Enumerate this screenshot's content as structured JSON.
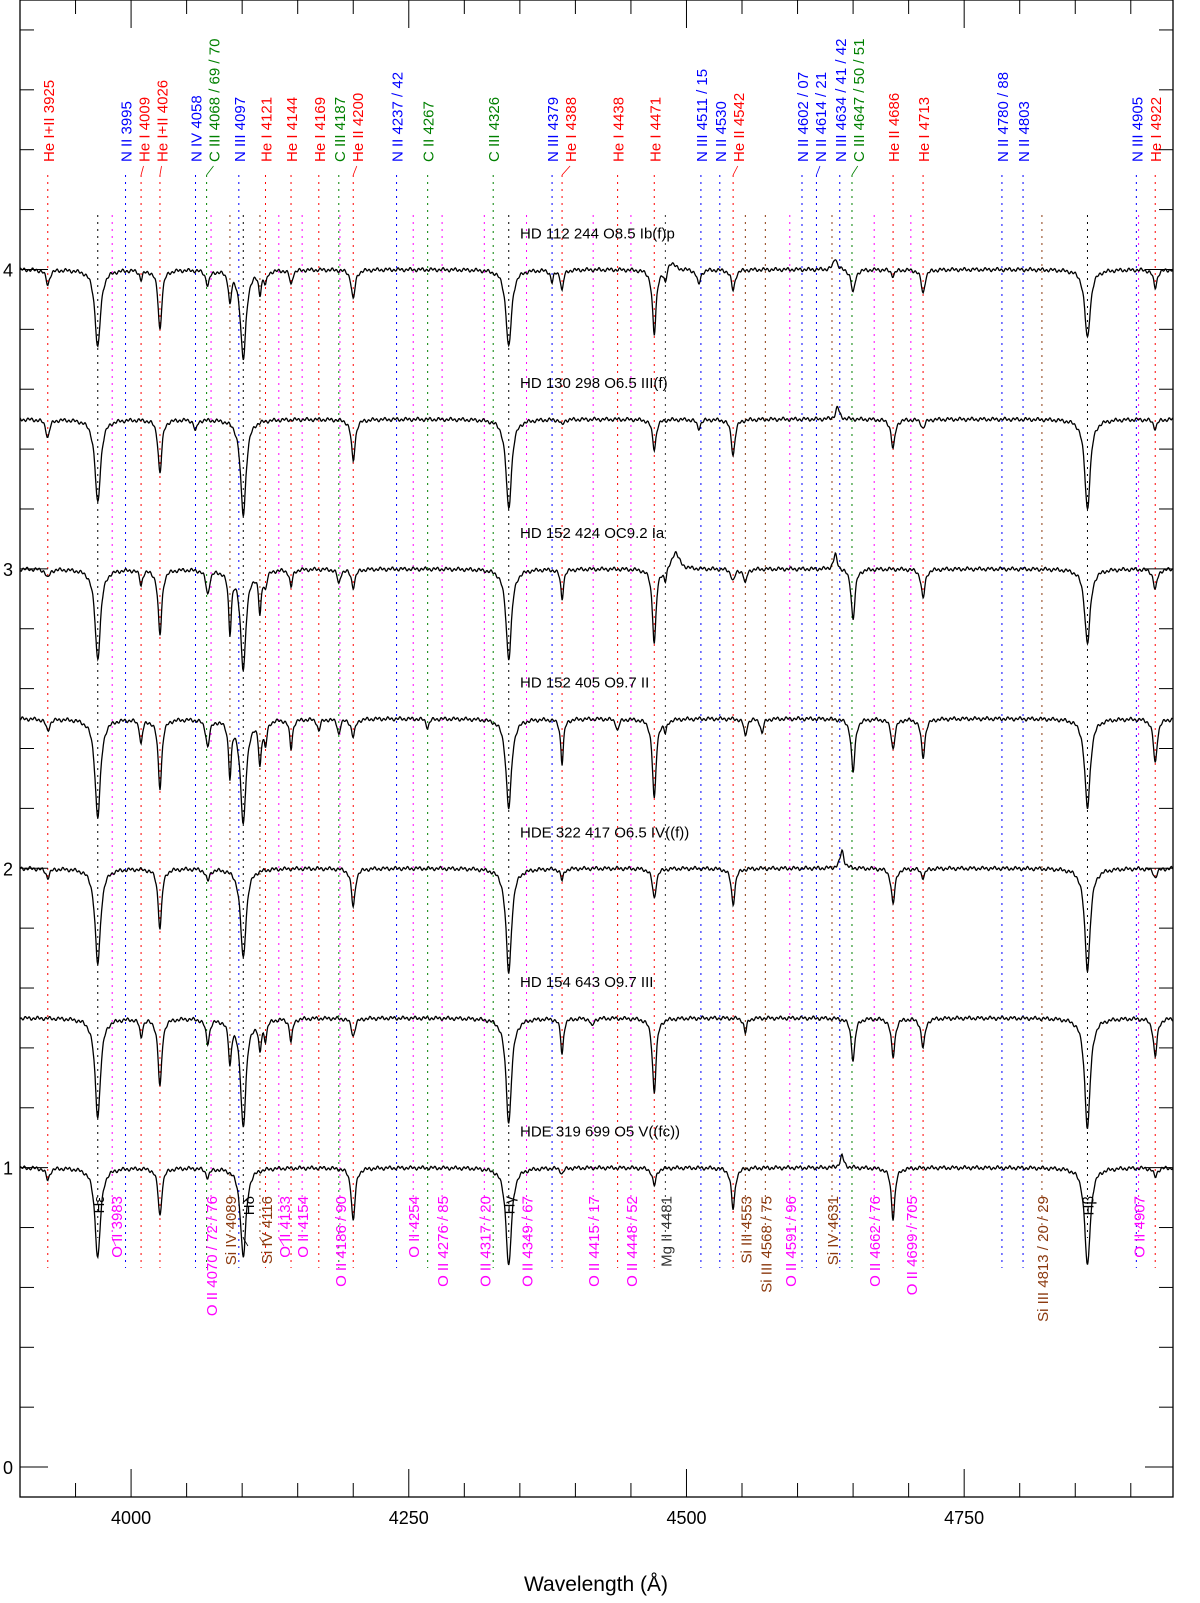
{
  "chart_data": {
    "type": "line",
    "title": "",
    "xlabel": "Wavelength (Å)",
    "ylabel": "",
    "xlim": [
      3900,
      4938
    ],
    "ylim": [
      -0.1,
      4.9
    ],
    "x_ticks": [
      4000,
      4250,
      4500,
      4750
    ],
    "x_tick_labels": [
      "4000",
      "4250",
      "4500",
      "4750"
    ],
    "y_ticks": [
      0,
      1,
      2,
      3,
      4
    ],
    "y_tick_labels": [
      "0",
      "1",
      "2",
      "3",
      "4"
    ],
    "grid": false,
    "colors": {
      "He": "#ff0000",
      "N": "#0000ff",
      "C": "#008000",
      "O": "#ff00ff",
      "Si": "#8b3a0f",
      "H": "#000000",
      "Mg": "#333333",
      "spectrum": "#000000"
    },
    "top_lines": [
      {
        "text": "He I+II 3925",
        "wl": 3925,
        "color": "#ff0000"
      },
      {
        "text": "N II 3995",
        "wl": 3995,
        "color": "#0000ff"
      },
      {
        "text": "He I 4009",
        "wl": 4009,
        "color": "#ff0000"
      },
      {
        "text": "He I+II 4026",
        "wl": 4026,
        "color": "#ff0000"
      },
      {
        "text": "N IV 4058",
        "wl": 4058,
        "color": "#0000ff"
      },
      {
        "text": "C III 4068 / 69 / 70",
        "wl": 4068,
        "color": "#008000"
      },
      {
        "text": "N III 4097",
        "wl": 4097,
        "color": "#0000ff"
      },
      {
        "text": "He I 4121",
        "wl": 4121,
        "color": "#ff0000"
      },
      {
        "text": "He I 4144",
        "wl": 4144,
        "color": "#ff0000"
      },
      {
        "text": "He I 4169",
        "wl": 4169,
        "color": "#ff0000"
      },
      {
        "text": "C III 4187",
        "wl": 4187,
        "color": "#008000"
      },
      {
        "text": "He II 4200",
        "wl": 4200,
        "color": "#ff0000"
      },
      {
        "text": "N II 4237 / 42",
        "wl": 4239,
        "color": "#0000ff"
      },
      {
        "text": "C II 4267",
        "wl": 4267,
        "color": "#008000"
      },
      {
        "text": "C III 4326",
        "wl": 4326,
        "color": "#008000"
      },
      {
        "text": "N III 4379",
        "wl": 4379,
        "color": "#0000ff"
      },
      {
        "text": "He I 4388",
        "wl": 4388,
        "color": "#ff0000"
      },
      {
        "text": "He I 4438",
        "wl": 4438,
        "color": "#ff0000"
      },
      {
        "text": "He I 4471",
        "wl": 4471,
        "color": "#ff0000"
      },
      {
        "text": "N III 4511 / 15",
        "wl": 4513,
        "color": "#0000ff"
      },
      {
        "text": "N II 4530",
        "wl": 4530,
        "color": "#0000ff"
      },
      {
        "text": "He II 4542",
        "wl": 4542,
        "color": "#ff0000"
      },
      {
        "text": "N II 4602 / 07",
        "wl": 4604,
        "color": "#0000ff"
      },
      {
        "text": "N II 4614 / 21",
        "wl": 4617,
        "color": "#0000ff"
      },
      {
        "text": "N III 4634 / 41 / 42",
        "wl": 4638,
        "color": "#0000ff"
      },
      {
        "text": "C III 4647 / 50 / 51",
        "wl": 4649,
        "color": "#008000"
      },
      {
        "text": "He II 4686",
        "wl": 4686,
        "color": "#ff0000"
      },
      {
        "text": "He I 4713",
        "wl": 4713,
        "color": "#ff0000"
      },
      {
        "text": "N II 4780 / 88",
        "wl": 4784,
        "color": "#0000ff"
      },
      {
        "text": "N II 4803",
        "wl": 4803,
        "color": "#0000ff"
      },
      {
        "text": "N III 4905",
        "wl": 4905,
        "color": "#0000ff"
      },
      {
        "text": "He I 4922",
        "wl": 4922,
        "color": "#ff0000"
      }
    ],
    "bottom_lines": [
      {
        "text": "Hε",
        "wl": 3970,
        "color": "#000000"
      },
      {
        "text": "O II 3983",
        "wl": 3983,
        "color": "#ff00ff"
      },
      {
        "text": "O II 4070 / 72 / 76",
        "wl": 4072,
        "color": "#ff00ff"
      },
      {
        "text": "Si IV 4089",
        "wl": 4089,
        "color": "#8b3a0f"
      },
      {
        "text": "Hδ",
        "wl": 4101,
        "color": "#000000"
      },
      {
        "text": "Si IV 4116",
        "wl": 4116,
        "color": "#8b3a0f"
      },
      {
        "text": "O II 4133",
        "wl": 4133,
        "color": "#ff00ff"
      },
      {
        "text": "O II 4154",
        "wl": 4154,
        "color": "#ff00ff"
      },
      {
        "text": "O II 4186 / 90",
        "wl": 4188,
        "color": "#ff00ff"
      },
      {
        "text": "O II 4254",
        "wl": 4254,
        "color": "#ff00ff"
      },
      {
        "text": "O II 4276 / 85",
        "wl": 4280,
        "color": "#ff00ff"
      },
      {
        "text": "O II 4317 / 20",
        "wl": 4318,
        "color": "#ff00ff"
      },
      {
        "text": "Hγ",
        "wl": 4340,
        "color": "#000000"
      },
      {
        "text": "O II 4349 / 67",
        "wl": 4356,
        "color": "#ff00ff"
      },
      {
        "text": "O II 4415 / 17",
        "wl": 4416,
        "color": "#ff00ff"
      },
      {
        "text": "O II 4448 / 52",
        "wl": 4450,
        "color": "#ff00ff"
      },
      {
        "text": "Mg II 4481",
        "wl": 4481,
        "color": "#333333"
      },
      {
        "text": "Si III 4553",
        "wl": 4553,
        "color": "#8b3a0f"
      },
      {
        "text": "Si III 4568 / 75",
        "wl": 4571,
        "color": "#8b3a0f"
      },
      {
        "text": "O II 4591 / 96",
        "wl": 4593,
        "color": "#ff00ff"
      },
      {
        "text": "Si IV 4631",
        "wl": 4631,
        "color": "#8b3a0f"
      },
      {
        "text": "O II 4662 / 76",
        "wl": 4669,
        "color": "#ff00ff"
      },
      {
        "text": "O II 4699 / 705",
        "wl": 4702,
        "color": "#ff00ff"
      },
      {
        "text": "Si III 4813 / 20 / 29",
        "wl": 4820,
        "color": "#8b3a0f"
      },
      {
        "text": "Hβ",
        "wl": 4861,
        "color": "#000000"
      },
      {
        "text": "O II 4907",
        "wl": 4907,
        "color": "#ff00ff"
      }
    ],
    "series": [
      {
        "name": "HD 112 244",
        "sptype": "O8.5 Ib(f)p",
        "offset": 4,
        "lines": [
          [
            3925,
            0.05,
            2
          ],
          [
            3970,
            0.26,
            3
          ],
          [
            4009,
            0.03,
            1.5
          ],
          [
            4026,
            0.2,
            2
          ],
          [
            4069,
            0.05,
            2
          ],
          [
            4089,
            0.1,
            1.5
          ],
          [
            4101,
            0.3,
            3
          ],
          [
            4116,
            0.07,
            1.5
          ],
          [
            4121,
            0.04,
            1.5
          ],
          [
            4144,
            0.05,
            1.5
          ],
          [
            4200,
            0.1,
            2
          ],
          [
            4340,
            0.26,
            3
          ],
          [
            4379,
            0.04,
            1.5
          ],
          [
            4388,
            0.07,
            1.5
          ],
          [
            4471,
            0.22,
            2
          ],
          [
            4481,
            0.05,
            1.5
          ],
          [
            4486,
            -0.03,
            4
          ],
          [
            4511,
            0.05,
            2
          ],
          [
            4542,
            0.07,
            2
          ],
          [
            4634,
            -0.04,
            2
          ],
          [
            4650,
            0.08,
            2
          ],
          [
            4686,
            0.02,
            2
          ],
          [
            4713,
            0.08,
            2
          ],
          [
            4861,
            0.23,
            3
          ],
          [
            4922,
            0.06,
            2
          ]
        ]
      },
      {
        "name": "HD 130 298",
        "sptype": "O6.5 III(f)",
        "offset": 3.5,
        "lines": [
          [
            3925,
            0.06,
            2
          ],
          [
            3970,
            0.28,
            3
          ],
          [
            4026,
            0.18,
            2
          ],
          [
            4058,
            0.04,
            1.5
          ],
          [
            4101,
            0.32,
            3
          ],
          [
            4200,
            0.14,
            2
          ],
          [
            4340,
            0.3,
            3
          ],
          [
            4388,
            0.02,
            1.5
          ],
          [
            4471,
            0.1,
            2
          ],
          [
            4511,
            0.03,
            2
          ],
          [
            4542,
            0.12,
            2
          ],
          [
            4636,
            -0.04,
            2
          ],
          [
            4686,
            0.1,
            2
          ],
          [
            4713,
            0.03,
            2
          ],
          [
            4861,
            0.3,
            3
          ],
          [
            4922,
            0.03,
            2
          ]
        ]
      },
      {
        "name": "HD 152 424",
        "sptype": "OC9.2 Ia",
        "offset": 3,
        "lines": [
          [
            3925,
            0.03,
            2
          ],
          [
            3970,
            0.3,
            3
          ],
          [
            4009,
            0.05,
            1.5
          ],
          [
            4026,
            0.22,
            2
          ],
          [
            4069,
            0.08,
            2
          ],
          [
            4089,
            0.2,
            1.5
          ],
          [
            4101,
            0.33,
            3
          ],
          [
            4116,
            0.14,
            1.5
          ],
          [
            4121,
            0.05,
            1.5
          ],
          [
            4144,
            0.06,
            1.5
          ],
          [
            4187,
            0.05,
            1.5
          ],
          [
            4200,
            0.06,
            2
          ],
          [
            4340,
            0.3,
            3
          ],
          [
            4388,
            0.1,
            1.5
          ],
          [
            4471,
            0.25,
            2
          ],
          [
            4481,
            0.04,
            1.5
          ],
          [
            4490,
            -0.06,
            4
          ],
          [
            4542,
            0.04,
            2
          ],
          [
            4553,
            0.05,
            1.5
          ],
          [
            4634,
            -0.05,
            2
          ],
          [
            4650,
            0.17,
            2
          ],
          [
            4713,
            0.1,
            2
          ],
          [
            4861,
            0.25,
            3
          ],
          [
            4922,
            0.07,
            2
          ]
        ]
      },
      {
        "name": "HD 152 405",
        "sptype": "O9.7 II",
        "offset": 2.5,
        "lines": [
          [
            3925,
            0.04,
            2
          ],
          [
            3970,
            0.33,
            3
          ],
          [
            4009,
            0.08,
            1.5
          ],
          [
            4026,
            0.23,
            2
          ],
          [
            4069,
            0.09,
            2
          ],
          [
            4089,
            0.18,
            1.5
          ],
          [
            4101,
            0.35,
            3
          ],
          [
            4116,
            0.14,
            1.5
          ],
          [
            4121,
            0.08,
            1.5
          ],
          [
            4144,
            0.1,
            1.5
          ],
          [
            4169,
            0.04,
            1.5
          ],
          [
            4187,
            0.05,
            1.5
          ],
          [
            4200,
            0.06,
            2
          ],
          [
            4267,
            0.03,
            1.5
          ],
          [
            4340,
            0.3,
            3
          ],
          [
            4388,
            0.15,
            1.5
          ],
          [
            4438,
            0.04,
            1.5
          ],
          [
            4471,
            0.27,
            2
          ],
          [
            4481,
            0.04,
            1.5
          ],
          [
            4553,
            0.06,
            1.5
          ],
          [
            4568,
            0.05,
            1.5
          ],
          [
            4650,
            0.18,
            2
          ],
          [
            4686,
            0.1,
            2
          ],
          [
            4713,
            0.13,
            2
          ],
          [
            4861,
            0.3,
            3
          ],
          [
            4922,
            0.15,
            2
          ]
        ]
      },
      {
        "name": "HDE 322 417",
        "sptype": "O6.5 IV((f))",
        "offset": 2,
        "lines": [
          [
            3925,
            0.03,
            2
          ],
          [
            3970,
            0.32,
            3
          ],
          [
            4026,
            0.2,
            2
          ],
          [
            4069,
            0.04,
            2
          ],
          [
            4101,
            0.3,
            3
          ],
          [
            4200,
            0.13,
            2
          ],
          [
            4340,
            0.35,
            3
          ],
          [
            4388,
            0.04,
            1.5
          ],
          [
            4471,
            0.1,
            2
          ],
          [
            4542,
            0.12,
            2
          ],
          [
            4640,
            -0.06,
            2
          ],
          [
            4686,
            0.12,
            2
          ],
          [
            4713,
            0.03,
            2
          ],
          [
            4861,
            0.34,
            3
          ],
          [
            4922,
            0.03,
            2
          ]
        ]
      },
      {
        "name": "HD 154 643",
        "sptype": "O9.7 III",
        "offset": 1.5,
        "lines": [
          [
            3970,
            0.33,
            3
          ],
          [
            4009,
            0.06,
            1.5
          ],
          [
            4026,
            0.23,
            2
          ],
          [
            4069,
            0.08,
            2
          ],
          [
            4089,
            0.14,
            1.5
          ],
          [
            4101,
            0.36,
            3
          ],
          [
            4116,
            0.1,
            1.5
          ],
          [
            4121,
            0.06,
            1.5
          ],
          [
            4144,
            0.08,
            1.5
          ],
          [
            4200,
            0.06,
            2
          ],
          [
            4340,
            0.35,
            3
          ],
          [
            4388,
            0.12,
            1.5
          ],
          [
            4415,
            0.03,
            1.5
          ],
          [
            4471,
            0.25,
            2
          ],
          [
            4553,
            0.05,
            1.5
          ],
          [
            4650,
            0.14,
            2
          ],
          [
            4686,
            0.13,
            2
          ],
          [
            4713,
            0.1,
            2
          ],
          [
            4861,
            0.37,
            3
          ],
          [
            4922,
            0.13,
            2
          ]
        ]
      },
      {
        "name": "HDE 319 699",
        "sptype": "O5 V((fc))",
        "offset": 1,
        "lines": [
          [
            3925,
            0.04,
            2
          ],
          [
            3970,
            0.3,
            3
          ],
          [
            4026,
            0.16,
            2
          ],
          [
            4069,
            0.03,
            2
          ],
          [
            4101,
            0.3,
            3
          ],
          [
            4200,
            0.18,
            2
          ],
          [
            4340,
            0.33,
            3
          ],
          [
            4388,
            0.02,
            1.5
          ],
          [
            4471,
            0.06,
            2
          ],
          [
            4542,
            0.14,
            2
          ],
          [
            4640,
            -0.04,
            2
          ],
          [
            4686,
            0.17,
            2
          ],
          [
            4861,
            0.33,
            3
          ],
          [
            4922,
            0.03,
            2
          ]
        ]
      }
    ]
  }
}
